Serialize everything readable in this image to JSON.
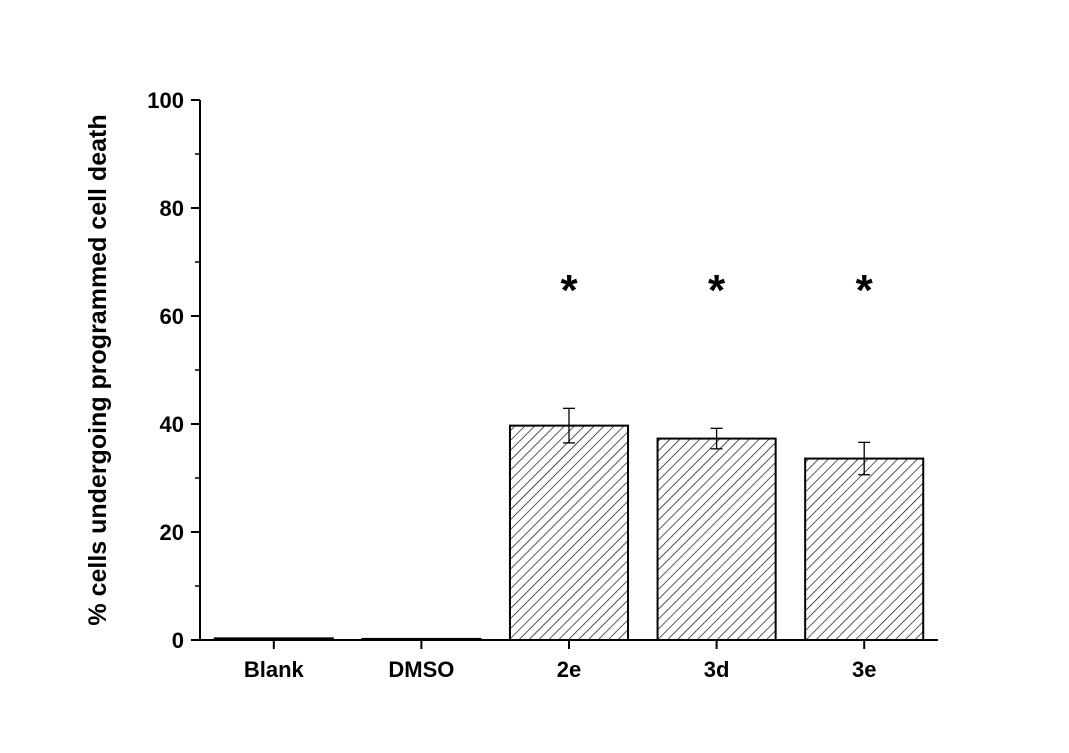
{
  "chart_data": {
    "type": "bar",
    "title": "",
    "xlabel": "",
    "ylabel": "% cells undergoing programmed cell death",
    "categories": [
      "Blank",
      "DMSO",
      "2e",
      "3d",
      "3e"
    ],
    "values": [
      0.3,
      0.2,
      39.7,
      37.3,
      33.6
    ],
    "errors": [
      0,
      0,
      3.2,
      1.9,
      3.0
    ],
    "annotations": [
      "",
      "",
      "*",
      "*",
      "*"
    ],
    "ylim": [
      0,
      100
    ],
    "yticks": [
      "0",
      "20",
      "40",
      "60",
      "80",
      "100"
    ],
    "grid": false,
    "legend": "none",
    "bar_fill": "hatched"
  }
}
